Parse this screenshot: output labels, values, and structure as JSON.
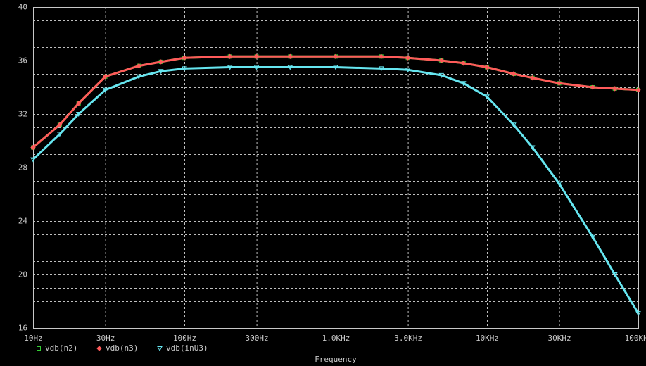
{
  "chart_data": {
    "type": "line",
    "x_label": "Frequency",
    "x_log_scale": true,
    "grid": true,
    "xlim": [
      10,
      100000
    ],
    "xticks": [
      {
        "value": 10,
        "label": "10Hz"
      },
      {
        "value": 30,
        "label": "30Hz"
      },
      {
        "value": 100,
        "label": "100Hz"
      },
      {
        "value": 300,
        "label": "300Hz"
      },
      {
        "value": 1000,
        "label": "1.0KHz"
      },
      {
        "value": 3000,
        "label": "3.0KHz"
      },
      {
        "value": 10000,
        "label": "10KHz"
      },
      {
        "value": 30000,
        "label": "30KHz"
      },
      {
        "value": 100000,
        "label": "100KHz"
      }
    ],
    "ylim": [
      16,
      40
    ],
    "yticks": [
      16,
      20,
      24,
      28,
      32,
      36,
      40
    ],
    "minor_yticks": [
      17,
      18,
      19,
      21,
      22,
      23,
      25,
      26,
      27,
      29,
      30,
      31,
      33,
      34,
      35,
      37,
      38,
      39
    ],
    "x": [
      10,
      15,
      20,
      30,
      50,
      70,
      100,
      200,
      300,
      500,
      1000,
      2000,
      3000,
      5000,
      7000,
      10000,
      15000,
      20000,
      30000,
      50000,
      70000,
      100000
    ],
    "series": [
      {
        "name": "vdb(n2)",
        "color": "#33cc33",
        "marker": "square",
        "values": [
          29.5,
          31.2,
          32.8,
          34.8,
          35.6,
          35.9,
          36.2,
          36.3,
          36.3,
          36.3,
          36.3,
          36.3,
          36.2,
          36.0,
          35.8,
          35.5,
          35.0,
          34.7,
          34.3,
          34.0,
          33.9,
          33.8
        ]
      },
      {
        "name": "vdb(n3)",
        "color": "#ff5a5a",
        "marker": "diamond",
        "values": [
          29.5,
          31.2,
          32.8,
          34.8,
          35.6,
          35.9,
          36.2,
          36.3,
          36.3,
          36.3,
          36.3,
          36.3,
          36.2,
          36.0,
          35.8,
          35.5,
          35.0,
          34.7,
          34.3,
          34.0,
          33.9,
          33.8
        ]
      },
      {
        "name": "vdb(inU3)",
        "color": "#66e6f0",
        "marker": "triangle",
        "values": [
          28.6,
          30.5,
          32.0,
          33.8,
          34.8,
          35.2,
          35.4,
          35.5,
          35.5,
          35.5,
          35.5,
          35.4,
          35.3,
          34.9,
          34.3,
          33.3,
          31.2,
          29.5,
          26.8,
          22.8,
          20.0,
          17.1
        ]
      }
    ]
  }
}
